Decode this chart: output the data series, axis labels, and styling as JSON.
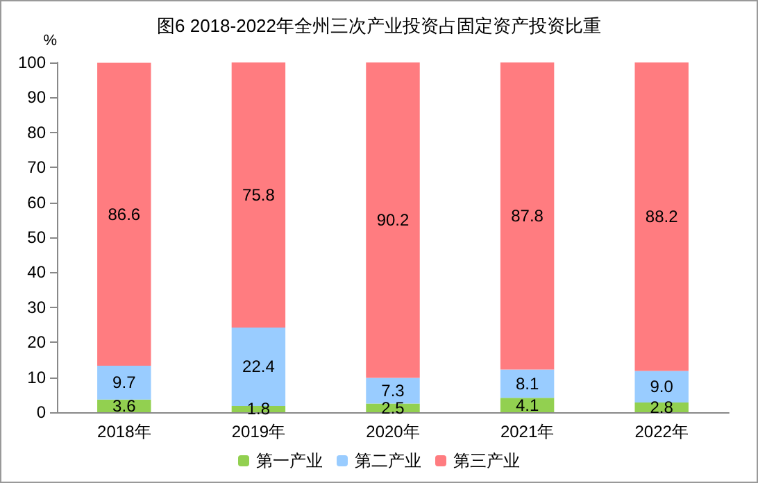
{
  "chart_data": {
    "type": "bar",
    "title": "图6 2018-2022年全州三次产业投资占固定资产投资比重",
    "ylabel": "%",
    "categories": [
      "2018年",
      "2019年",
      "2020年",
      "2021年",
      "2022年"
    ],
    "stacked": true,
    "ylim": [
      0,
      100
    ],
    "yticks": [
      0,
      10,
      20,
      30,
      40,
      50,
      60,
      70,
      80,
      90,
      100
    ],
    "grid": false,
    "legend": "bottom",
    "series": [
      {
        "name": "第一产业",
        "color": "#92d050",
        "values": [
          3.6,
          1.8,
          2.5,
          4.1,
          2.8
        ],
        "value_labels": [
          "3.6",
          "1.8",
          "2.5",
          "4.1",
          "2.8"
        ]
      },
      {
        "name": "第二产业",
        "color": "#99ccff",
        "values": [
          9.7,
          22.4,
          7.3,
          8.1,
          9.0
        ],
        "value_labels": [
          "9.7",
          "22.4",
          "7.3",
          "8.1",
          "9.0"
        ]
      },
      {
        "name": "第三产业",
        "color": "#ff7c80",
        "values": [
          86.6,
          75.8,
          90.2,
          87.8,
          88.2
        ],
        "value_labels": [
          "86.6",
          "75.8",
          "90.2",
          "87.8",
          "88.2"
        ]
      }
    ]
  }
}
